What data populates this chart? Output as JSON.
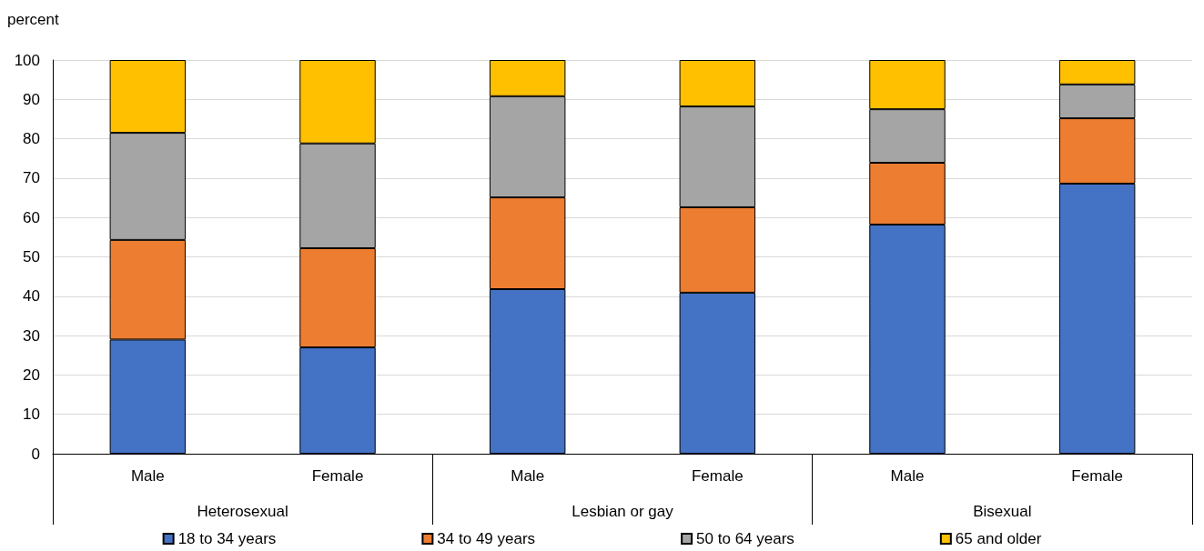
{
  "chart_data": {
    "type": "bar",
    "stacked": true,
    "ylabel": "percent",
    "categories": [
      "Male",
      "Female",
      "Male",
      "Female",
      "Male",
      "Female"
    ],
    "annotations": [
      "Heterosexual",
      "Lesbian or gay",
      "Bisexual"
    ],
    "series": [
      {
        "name": "18 to 34 years",
        "color": "#4472c4",
        "values": [
          29,
          27,
          41.8,
          40.9,
          58.2,
          68.6
        ]
      },
      {
        "name": "34 to 49 years",
        "color": "#ed7d31",
        "values": [
          25.3,
          25.2,
          23.3,
          21.7,
          15.7,
          16.6
        ]
      },
      {
        "name": "50 to 64 years",
        "color": "#a5a5a5",
        "values": [
          27.2,
          26.6,
          25.7,
          25.6,
          13.6,
          8.6
        ]
      },
      {
        "name": "65 and older",
        "color": "#ffc000",
        "values": [
          18.5,
          21.2,
          9.2,
          11.8,
          12.5,
          6.2
        ]
      }
    ],
    "ylim": [
      0,
      100
    ],
    "yticks": [
      0,
      10,
      20,
      30,
      40,
      50,
      60,
      70,
      80,
      90,
      100
    ],
    "grid": "y",
    "legend": "bottom"
  }
}
